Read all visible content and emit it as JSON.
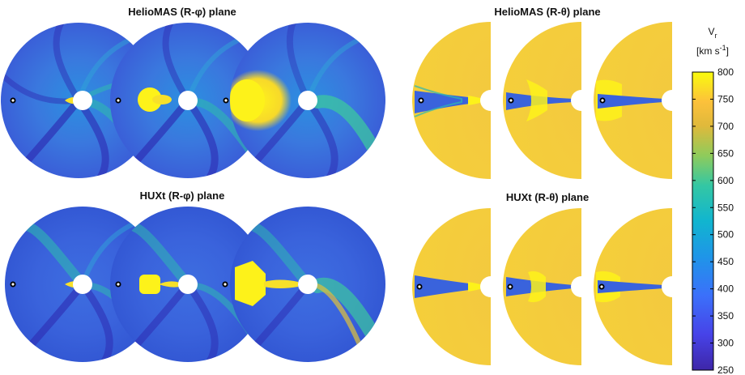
{
  "titles": {
    "top_left": "HelioMAS (R-φ) plane",
    "top_right": "HelioMAS (R-θ) plane",
    "bottom_left": "HUXt (R-φ) plane",
    "bottom_right": "HUXt (R-θ) plane"
  },
  "colorbar": {
    "label_main": "V",
    "label_sub": "r",
    "unit_text": "[km s",
    "unit_exp": "-1",
    "unit_close": "]",
    "ticks": [
      "800",
      "750",
      "700",
      "650",
      "600",
      "550",
      "500",
      "450",
      "400",
      "350",
      "300",
      "250"
    ],
    "min": 250,
    "max": 800
  },
  "colors": {
    "background_wind": "#3a63dc",
    "fast_wind": "#f7d23c",
    "cme": "#fdf21a",
    "slow_band": "#2e2fb3",
    "mid_band": "#2fb8b0"
  }
}
